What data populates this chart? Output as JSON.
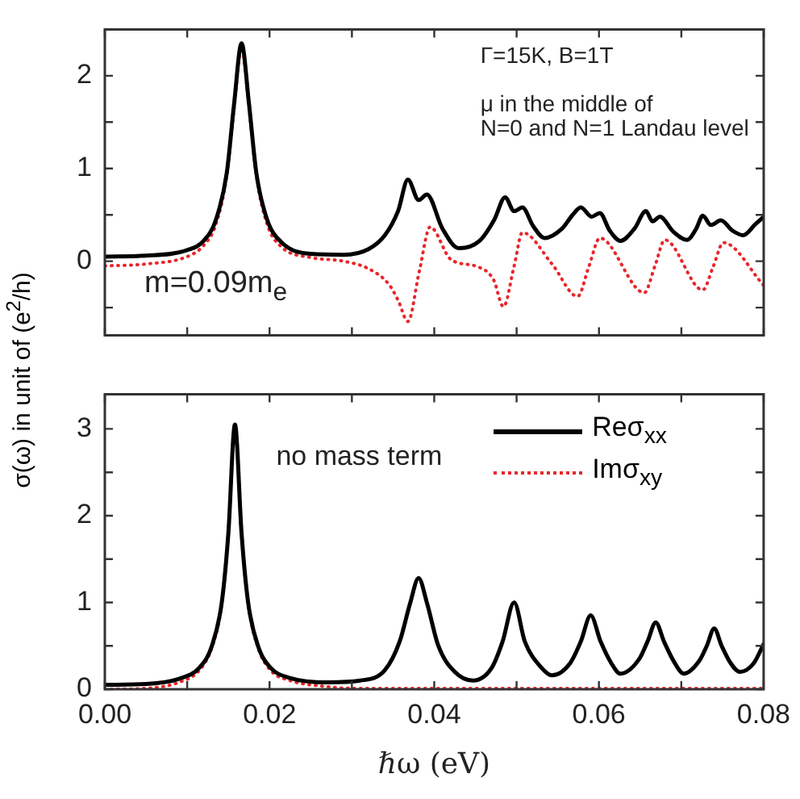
{
  "chart_data": [
    {
      "type": "line",
      "ylabel": "σ(ω) in unit of (e$^{2}$/h)",
      "xlim": [
        0,
        0.08
      ],
      "xticks": [
        {
          "value": 0,
          "label": null
        },
        {
          "value": 0.01,
          "label": null
        },
        {
          "value": 0.02,
          "label": null
        },
        {
          "value": 0.03,
          "label": null
        },
        {
          "value": 0.04,
          "label": null
        },
        {
          "value": 0.05,
          "label": null
        },
        {
          "value": 0.06,
          "label": null
        },
        {
          "value": 0.07,
          "label": null
        },
        {
          "value": 0.08,
          "label": null
        }
      ],
      "ylim": [
        -0.8,
        2.5
      ],
      "yticks": [
        {
          "value": -0.5,
          "label": null
        },
        0,
        {
          "value": 0.5,
          "label": null
        },
        1,
        {
          "value": 1.5,
          "label": null
        },
        2
      ],
      "tick_labels": "y",
      "grid": false,
      "legend": false,
      "marker": "none",
      "annotations": [
        "Γ=15K, B=1T",
        "μ in the middle of",
        "N=0 and N=1 Landau level",
        "m=0.09m$_{e}$"
      ],
      "series": [
        {
          "color": "#000000",
          "line_style": "solid",
          "x": [
            0,
            0.005,
            0.01,
            0.012,
            0.0135,
            0.0148,
            0.0157,
            0.0166,
            0.0175,
            0.0184,
            0.0197,
            0.0215,
            0.025,
            0.029,
            0.032,
            0.034,
            0.0356,
            0.0368,
            0.0381,
            0.0391,
            0.041,
            0.043,
            0.0455,
            0.0473,
            0.0486,
            0.0497,
            0.0507,
            0.052,
            0.0534,
            0.0555,
            0.0568,
            0.0578,
            0.0591,
            0.0601,
            0.0613,
            0.0626,
            0.0643,
            0.0657,
            0.0665,
            0.0674,
            0.069,
            0.0707,
            0.0718,
            0.0726,
            0.0736,
            0.0748,
            0.0762,
            0.0775,
            0.079,
            0.08
          ],
          "values": [
            0.05,
            0.06,
            0.12,
            0.22,
            0.45,
            0.95,
            1.7,
            2.35,
            1.7,
            0.95,
            0.45,
            0.2,
            0.08,
            0.07,
            0.13,
            0.28,
            0.54,
            0.88,
            0.66,
            0.72,
            0.35,
            0.14,
            0.22,
            0.45,
            0.69,
            0.54,
            0.58,
            0.38,
            0.25,
            0.35,
            0.5,
            0.58,
            0.48,
            0.52,
            0.33,
            0.22,
            0.35,
            0.54,
            0.43,
            0.48,
            0.32,
            0.23,
            0.35,
            0.49,
            0.39,
            0.44,
            0.33,
            0.28,
            0.4,
            0.48
          ]
        },
        {
          "color": "#e8262b",
          "line_style": "dotted",
          "x": [
            0,
            0.005,
            0.01,
            0.012,
            0.0135,
            0.0148,
            0.0157,
            0.0166,
            0.0175,
            0.0184,
            0.0197,
            0.0215,
            0.025,
            0.029,
            0.032,
            0.0345,
            0.0356,
            0.0368,
            0.0382,
            0.0395,
            0.042,
            0.0453,
            0.0472,
            0.0484,
            0.0497,
            0.0507,
            0.0543,
            0.0574,
            0.0588,
            0.0601,
            0.0655,
            0.0668,
            0.068,
            0.0726,
            0.0739,
            0.0751,
            0.08
          ],
          "values": [
            -0.05,
            -0.03,
            0.05,
            0.17,
            0.4,
            0.92,
            1.65,
            2.3,
            1.65,
            0.92,
            0.4,
            0.15,
            0.04,
            0.0,
            -0.08,
            -0.25,
            -0.42,
            -0.65,
            -0.1,
            0.37,
            0.02,
            -0.06,
            -0.2,
            -0.49,
            -0.05,
            0.31,
            -0.03,
            -0.38,
            -0.05,
            0.25,
            -0.34,
            -0.05,
            0.23,
            -0.31,
            -0.05,
            0.2,
            -0.26
          ]
        }
      ]
    },
    {
      "type": "line",
      "xlabel": "ℏω (eV)",
      "xlim": [
        0,
        0.08
      ],
      "xticks": [
        {
          "value": 0,
          "label": "0.00"
        },
        {
          "value": 0.01,
          "label": null
        },
        {
          "value": 0.02,
          "label": "0.02"
        },
        {
          "value": 0.03,
          "label": null
        },
        {
          "value": 0.04,
          "label": "0.04"
        },
        {
          "value": 0.05,
          "label": null
        },
        {
          "value": 0.06,
          "label": "0.06"
        },
        {
          "value": 0.07,
          "label": null
        },
        {
          "value": 0.08,
          "label": "0.08"
        }
      ],
      "ylim": [
        0,
        3.4
      ],
      "yticks": [
        0,
        {
          "value": 0.5,
          "label": null
        },
        1,
        {
          "value": 1.5,
          "label": null
        },
        2,
        {
          "value": 2.5,
          "label": null
        },
        3
      ],
      "grid": false,
      "legend": "top right",
      "marker": "none",
      "annotations": [
        "no mass term"
      ],
      "series": [
        {
          "name": "Reσ$_{xx}$",
          "color": "#000000",
          "line_style": "solid",
          "x": [
            0,
            0.005,
            0.009,
            0.0115,
            0.013,
            0.0142,
            0.015,
            0.0158,
            0.0166,
            0.0174,
            0.0186,
            0.0201,
            0.0225,
            0.027,
            0.031,
            0.034,
            0.0358,
            0.0371,
            0.0381,
            0.0391,
            0.0405,
            0.0425,
            0.0447,
            0.047,
            0.0483,
            0.0497,
            0.051,
            0.053,
            0.0543,
            0.0565,
            0.0578,
            0.059,
            0.0602,
            0.0615,
            0.0626,
            0.0649,
            0.0659,
            0.0669,
            0.0679,
            0.0691,
            0.0703,
            0.0722,
            0.0731,
            0.074,
            0.0749,
            0.076,
            0.0771,
            0.0788,
            0.08
          ],
          "values": [
            0.05,
            0.06,
            0.12,
            0.25,
            0.5,
            1.0,
            1.8,
            3.05,
            1.8,
            1.0,
            0.5,
            0.25,
            0.13,
            0.08,
            0.1,
            0.22,
            0.55,
            1.0,
            1.28,
            1.0,
            0.5,
            0.2,
            0.1,
            0.25,
            0.55,
            1.0,
            0.55,
            0.25,
            0.16,
            0.3,
            0.55,
            0.85,
            0.55,
            0.3,
            0.18,
            0.35,
            0.55,
            0.77,
            0.55,
            0.32,
            0.18,
            0.33,
            0.5,
            0.7,
            0.5,
            0.3,
            0.2,
            0.3,
            0.52
          ]
        },
        {
          "name": "Imσ$_{xy}$",
          "color": "#e8262b",
          "line_style": "dotted",
          "x": [
            0,
            0.005,
            0.009,
            0.0115,
            0.013,
            0.0142,
            0.015,
            0.0158,
            0.0166,
            0.0174,
            0.0186,
            0.0201,
            0.0225,
            0.027,
            0.03,
            0.08
          ],
          "values": [
            0.0,
            0.01,
            0.08,
            0.22,
            0.48,
            0.98,
            1.78,
            3.03,
            1.78,
            0.98,
            0.48,
            0.22,
            0.1,
            0.03,
            0.01,
            0.01
          ]
        }
      ]
    }
  ]
}
